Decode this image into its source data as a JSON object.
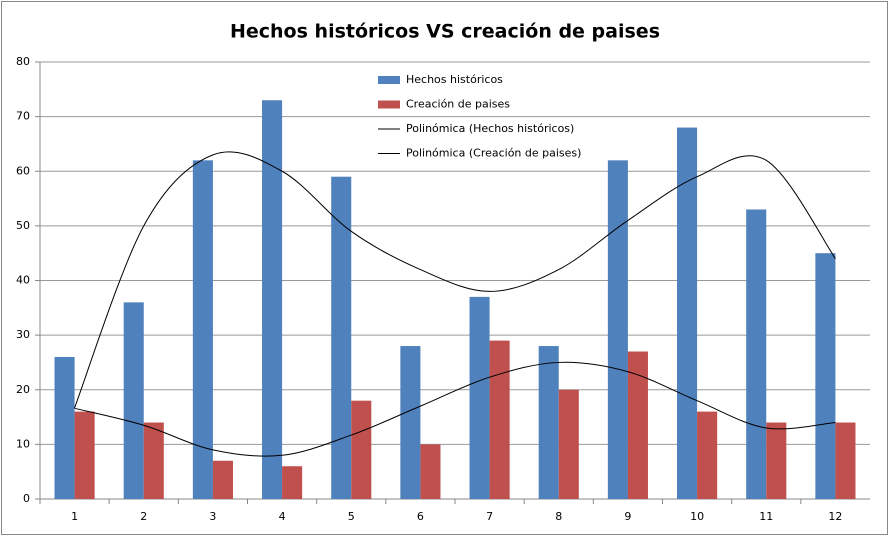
{
  "chart_data": {
    "type": "bar",
    "title": "Hechos históricos VS creación de paises",
    "categories": [
      "1",
      "2",
      "3",
      "4",
      "5",
      "6",
      "7",
      "8",
      "9",
      "10",
      "11",
      "12"
    ],
    "series": [
      {
        "name": "Hechos históricos",
        "color": "#4f81bd",
        "values": [
          26,
          36,
          62,
          73,
          59,
          28,
          37,
          28,
          62,
          68,
          53,
          45
        ]
      },
      {
        "name": "Creación de paises",
        "color": "#c0504d",
        "values": [
          16,
          14,
          7,
          6,
          18,
          10,
          29,
          20,
          27,
          16,
          14,
          14
        ]
      },
      {
        "name": "Polinómica (Hechos históricos)",
        "type": "line",
        "color": "#000000",
        "values": [
          16.7,
          50,
          63,
          60,
          49,
          42,
          38,
          42,
          51,
          59,
          62,
          44
        ]
      },
      {
        "name": "Polinómica (Creación de paises)",
        "type": "line",
        "color": "#000000",
        "values": [
          16.6,
          13.5,
          9,
          8,
          11.7,
          17,
          22.3,
          25,
          23.3,
          18,
          13,
          14
        ]
      }
    ],
    "ylim": [
      0,
      80
    ],
    "yticks": [
      0,
      10,
      20,
      30,
      40,
      50,
      60,
      70,
      80
    ],
    "grid": true,
    "legend": "top"
  }
}
